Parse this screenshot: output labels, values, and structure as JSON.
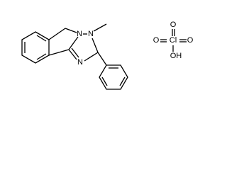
{
  "molecule": {
    "atoms": [
      "N",
      "N",
      "N"
    ]
  },
  "perchlorate": {
    "atoms": [
      "O",
      "O",
      "Cl",
      "O",
      "OH"
    ]
  }
}
